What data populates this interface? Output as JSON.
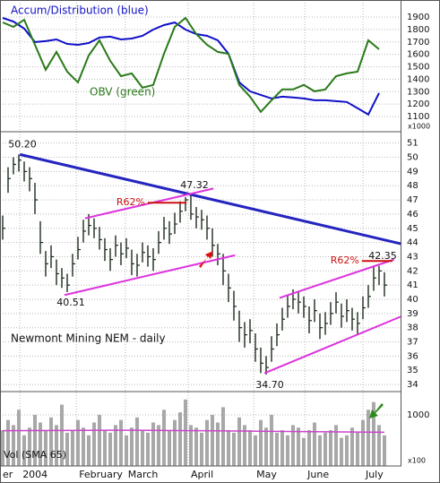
{
  "chart_data": [
    {
      "type": "line",
      "xlim": [
        -0.5,
        74.17
      ],
      "x": [
        0,
        2,
        4,
        6,
        8,
        10,
        12,
        14,
        16,
        18,
        20,
        22,
        24,
        26,
        28,
        30,
        32,
        34,
        36,
        38,
        40,
        42,
        44,
        46,
        48,
        50,
        52,
        54,
        56,
        58,
        60,
        62,
        64,
        66,
        68,
        70
      ],
      "series": [
        {
          "name": "Accum/Distribution (blue)",
          "color": "#1010c8",
          "values": [
            1893,
            1864,
            1807,
            1699,
            1706,
            1720,
            1684,
            1677,
            1691,
            1735,
            1742,
            1720,
            1727,
            1749,
            1799,
            1835,
            1856,
            1799,
            1763,
            1749,
            1713,
            1605,
            1375,
            1303,
            1274,
            1245,
            1260,
            1253,
            1245,
            1231,
            1231,
            1224,
            1217,
            1167,
            1116,
            1289
          ]
        },
        {
          "name": "OBV (green)",
          "color": "#2a7a1a",
          "values": [
            1857,
            1821,
            1878,
            1677,
            1476,
            1620,
            1461,
            1375,
            1591,
            1713,
            1548,
            1425,
            1447,
            1332,
            1354,
            1605,
            1821,
            1893,
            1763,
            1677,
            1620,
            1605,
            1354,
            1260,
            1138,
            1231,
            1318,
            1318,
            1354,
            1303,
            1318,
            1425,
            1447,
            1461,
            1713,
            1641
          ]
        }
      ],
      "ylim": [
        978,
        2037
      ],
      "yticks": [
        1100,
        1200,
        1300,
        1400,
        1500,
        1600,
        1700,
        1800,
        1900
      ],
      "axis_multiplier": "x1000",
      "grid": true
    },
    {
      "type": "ohlc",
      "title": "Newmont Mining NEM - daily",
      "color": "#1c2a1c",
      "xlim": [
        -0.5,
        74.17
      ],
      "xticks": [
        {
          "value": -0.5,
          "label": "er"
        },
        {
          "value": 3.2,
          "label": "2004"
        },
        {
          "value": 13.7,
          "label": "February"
        },
        {
          "value": 22.8,
          "label": "March"
        },
        {
          "value": 34.5,
          "label": "April"
        },
        {
          "value": 46.7,
          "label": "May"
        },
        {
          "value": 56.2,
          "label": "June"
        },
        {
          "value": 67,
          "label": "July"
        }
      ],
      "high": [
        45.9,
        49.3,
        50.0,
        50.2,
        49.7,
        49.3,
        48.2,
        45.5,
        43.4,
        43.8,
        42.8,
        42.2,
        41.8,
        43.2,
        44.4,
        45.6,
        46.0,
        45.7,
        45.1,
        44.3,
        43.6,
        44.5,
        44.0,
        44.3,
        43.5,
        43.2,
        44.0,
        43.8,
        43.6,
        44.8,
        45.8,
        45.5,
        46.1,
        46.9,
        47.2,
        47.32,
        46.5,
        46.3,
        45.9,
        45.0,
        43.9,
        43.2,
        41.8,
        40.6,
        39.2,
        38.4,
        38.6,
        37.6,
        36.6,
        36.0,
        37.4,
        38.3,
        39.4,
        40.3,
        40.7,
        40.6,
        40.2,
        39.5,
        40.0,
        39.0,
        39.1,
        39.8,
        40.5,
        39.7,
        40.0,
        39.4,
        39.1,
        40.2,
        41.0,
        42.3,
        42.35,
        41.9
      ],
      "low": [
        44.2,
        47.5,
        48.8,
        49.0,
        48.3,
        47.6,
        46.0,
        43.2,
        41.6,
        42.2,
        41.0,
        40.8,
        40.51,
        41.6,
        42.8,
        44.0,
        44.5,
        44.3,
        43.5,
        42.7,
        42.0,
        43.0,
        42.4,
        42.9,
        41.7,
        41.6,
        42.6,
        42.3,
        42.0,
        43.2,
        44.2,
        43.9,
        44.6,
        45.4,
        46.2,
        45.6,
        45.0,
        44.9,
        44.2,
        43.0,
        42.4,
        41.0,
        39.8,
        38.5,
        37.0,
        36.6,
        36.9,
        35.6,
        34.8,
        34.7,
        35.6,
        36.7,
        37.8,
        38.7,
        39.3,
        39.0,
        38.7,
        37.6,
        38.4,
        37.2,
        37.5,
        38.2,
        39.0,
        38.0,
        38.4,
        37.8,
        37.5,
        38.6,
        39.4,
        40.6,
        41.0,
        40.2
      ],
      "close": [
        45.0,
        48.5,
        49.5,
        49.8,
        49.0,
        48.5,
        47.0,
        44.0,
        42.5,
        43.0,
        41.8,
        41.5,
        41.0,
        42.5,
        43.5,
        44.8,
        45.2,
        45.0,
        44.2,
        43.5,
        42.8,
        43.8,
        43.2,
        43.6,
        42.5,
        42.4,
        43.3,
        43.0,
        42.8,
        44.0,
        45.0,
        44.6,
        45.3,
        46.2,
        47.0,
        46.0,
        45.8,
        45.6,
        45.0,
        43.8,
        43.2,
        42.0,
        40.8,
        39.5,
        38.0,
        37.5,
        37.8,
        36.5,
        35.5,
        35.2,
        36.5,
        37.5,
        38.6,
        39.5,
        40.0,
        39.8,
        39.5,
        38.5,
        39.2,
        38.0,
        38.3,
        39.0,
        39.8,
        38.8,
        39.2,
        38.6,
        38.3,
        39.4,
        40.2,
        41.5,
        42.0,
        41.0
      ],
      "ylim": [
        33.5,
        51.8
      ],
      "yticks": [
        34,
        35,
        36,
        37,
        38,
        39,
        40,
        41,
        42,
        43,
        44,
        45,
        46,
        47,
        48,
        49,
        50,
        51
      ],
      "grid": true,
      "annotations": [
        {
          "label": "50.20",
          "index": 3,
          "value": 50.2,
          "side": "above"
        },
        {
          "label": "40.51",
          "index": 12,
          "value": 40.51,
          "side": "below"
        },
        {
          "label": "47.32",
          "index": 35,
          "value": 47.32,
          "side": "above"
        },
        {
          "label": "34.70",
          "index": 49,
          "value": 34.7,
          "side": "below"
        },
        {
          "label": "42.35",
          "index": 70,
          "value": 42.35,
          "side": "above"
        }
      ],
      "trendlines": [
        {
          "color": "#2424c0",
          "width": 3,
          "points": [
            [
              3.2,
              50.2
            ],
            [
              74.17,
              43.9
            ]
          ]
        },
        {
          "color": "#dd33dd",
          "width": 2,
          "points": [
            [
              15.3,
              45.7
            ],
            [
              39.2,
              47.8
            ]
          ]
        },
        {
          "color": "#dd33dd",
          "width": 2,
          "points": [
            [
              11.5,
              40.3
            ],
            [
              43.2,
              43.1
            ]
          ]
        },
        {
          "color": "#dd33dd",
          "width": 2,
          "points": [
            [
              48.7,
              34.8
            ],
            [
              74.17,
              38.8
            ]
          ]
        },
        {
          "color": "#dd33dd",
          "width": 2,
          "points": [
            [
              51.5,
              40.1
            ],
            [
              72.8,
              42.8
            ]
          ]
        },
        {
          "color": "#cc1111",
          "width": 2,
          "label": "R62%",
          "points": [
            [
              27,
              46.8
            ],
            [
              34.2,
              46.8
            ]
          ]
        },
        {
          "color": "#cc1111",
          "width": 2,
          "label": "R62%",
          "points": [
            [
              66.8,
              42.7
            ],
            [
              72.5,
              42.7
            ]
          ]
        }
      ]
    },
    {
      "type": "bar",
      "title": "Vol (SMA 65)",
      "color": "#a8a8a8",
      "xlim": [
        -0.5,
        74.17
      ],
      "values": [
        700,
        900,
        800,
        1100,
        600,
        750,
        1000,
        850,
        700,
        950,
        800,
        1200,
        650,
        700,
        900,
        750,
        600,
        850,
        1000,
        700,
        650,
        800,
        900,
        600,
        750,
        950,
        700,
        650,
        850,
        800,
        1100,
        700,
        900,
        1050,
        1300,
        800,
        750,
        650,
        900,
        1000,
        850,
        1150,
        700,
        650,
        950,
        800,
        700,
        600,
        900,
        750,
        1000,
        650,
        700,
        600,
        800,
        750,
        550,
        700,
        850,
        600,
        650,
        700,
        800,
        550,
        600,
        750,
        650,
        900,
        1100,
        1250,
        800,
        600
      ],
      "sma": {
        "color": "#cc44cc",
        "x": [
          0,
          24,
          48,
          71
        ],
        "values": [
          690,
          700,
          680,
          660
        ]
      },
      "ylim": [
        0,
        1455
      ],
      "yticks": [
        1000
      ],
      "axis_multiplier": "x100",
      "grid": true
    }
  ]
}
